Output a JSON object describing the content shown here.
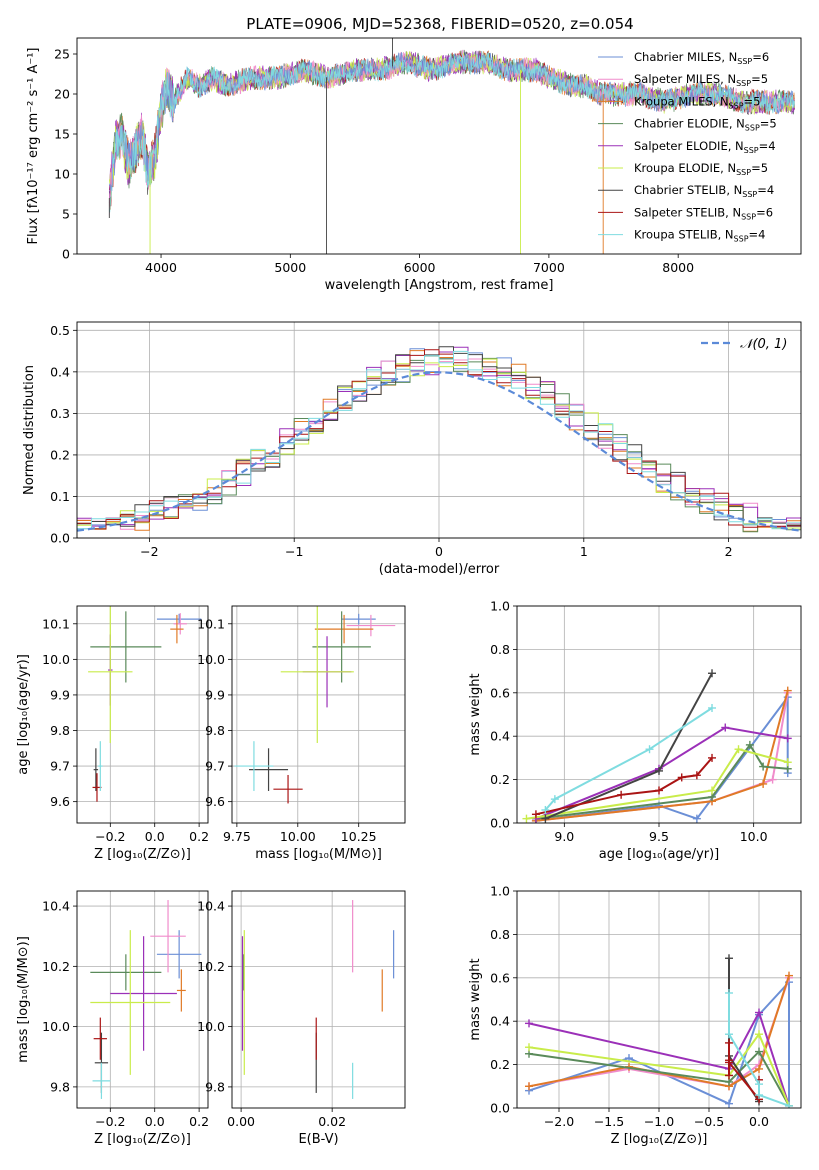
{
  "title": "PLATE=0906, MJD=52368, FIBERID=0520, z=0.054",
  "colors": {
    "Chabrier MILES": "#6b8fd6",
    "Salpeter MILES": "#f08ccb",
    "Kroupa MILES": "#e07a26",
    "Chabrier ELODIE": "#5a8a5a",
    "Salpeter ELODIE": "#9b30b8",
    "Kroupa ELODIE": "#c9ec4a",
    "Chabrier STELIB": "#444444",
    "Salpeter STELIB": "#aa1414",
    "Kroupa STELIB": "#7fdce0",
    "normal": "#5b8ad8",
    "grid": "#b0b0b0"
  },
  "chart_data": [
    {
      "type": "line",
      "title": "PLATE=0906, MJD=52368, FIBERID=0520, z=0.054",
      "xlabel": "wavelength [Angstrom, rest frame]",
      "ylabel": "Flux [fλ10⁻¹⁷ erg cm⁻² s⁻¹ A⁻¹]",
      "xlim": [
        3350,
        8950
      ],
      "ylim": [
        0,
        27
      ],
      "xticks": [
        4000,
        5000,
        6000,
        7000,
        8000
      ],
      "yticks": [
        0,
        5,
        10,
        15,
        20,
        25
      ],
      "grid": false,
      "legend": "right",
      "legend_entries": [
        {
          "name": "Chabrier MILES, N_SSP=6",
          "label": "Chabrier MILES, N",
          "sub": "SSP",
          "suffix": "=6",
          "color_key": "Chabrier MILES"
        },
        {
          "name": "Salpeter MILES, N_SSP=5",
          "label": "Salpeter MILES, N",
          "sub": "SSP",
          "suffix": "=5",
          "color_key": "Salpeter MILES"
        },
        {
          "name": "Kroupa MILES, N_SSP=5",
          "label": "Kroupa MILES, N",
          "sub": "SSP",
          "suffix": "=5",
          "color_key": "Kroupa MILES"
        },
        {
          "name": "Chabrier ELODIE, N_SSP=5",
          "label": "Chabrier ELODIE, N",
          "sub": "SSP",
          "suffix": "=5",
          "color_key": "Chabrier ELODIE"
        },
        {
          "name": "Salpeter ELODIE, N_SSP=4",
          "label": "Salpeter ELODIE, N",
          "sub": "SSP",
          "suffix": "=4",
          "color_key": "Salpeter ELODIE"
        },
        {
          "name": "Kroupa ELODIE, N_SSP=5",
          "label": "Kroupa ELODIE, N",
          "sub": "SSP",
          "suffix": "=5",
          "color_key": "Kroupa ELODIE"
        },
        {
          "name": "Chabrier STELIB, N_SSP=4",
          "label": "Chabrier STELIB, N",
          "sub": "SSP",
          "suffix": "=4",
          "color_key": "Chabrier STELIB"
        },
        {
          "name": "Salpeter STELIB, N_SSP=6",
          "label": "Salpeter STELIB, N",
          "sub": "SSP",
          "suffix": "=6",
          "color_key": "Salpeter STELIB"
        },
        {
          "name": "Kroupa STELIB, N_SSP=4",
          "label": "Kroupa STELIB, N",
          "sub": "SSP",
          "suffix": "=4",
          "color_key": "Kroupa STELIB"
        }
      ],
      "spectrum_anchor_points": {
        "x": [
          3600,
          3650,
          3700,
          3750,
          3800,
          3850,
          3900,
          3950,
          4000,
          4050,
          4100,
          4200,
          4300,
          4400,
          4500,
          4700,
          4900,
          5100,
          5300,
          5500,
          5700,
          5900,
          6100,
          6300,
          6500,
          6700,
          6900,
          7000,
          7200,
          7300,
          7400,
          7500,
          7700,
          7900,
          8100,
          8300,
          8500,
          8700,
          8900
        ],
        "y": [
          7,
          14,
          15,
          11,
          13,
          15,
          10,
          12,
          18,
          21,
          19,
          22,
          21,
          22,
          21,
          22,
          22,
          23,
          22,
          23,
          23,
          24,
          23,
          24,
          24,
          23,
          23,
          22,
          21,
          21,
          20,
          20,
          20,
          19,
          20,
          20,
          19,
          19,
          19
        ]
      },
      "spike_lines": [
        {
          "x": 3600,
          "y": 4.5,
          "color_key": "Chabrier STELIB"
        },
        {
          "x": 3915,
          "y": 0,
          "color_key": "Kroupa ELODIE"
        },
        {
          "x": 5280,
          "y": 0,
          "color_key": "Chabrier STELIB"
        },
        {
          "x": 5790,
          "y": 27,
          "color_key": "Chabrier STELIB"
        },
        {
          "x": 6780,
          "y": 0,
          "color_key": "Kroupa ELODIE"
        },
        {
          "x": 7420,
          "y": 0,
          "color_key": "Kroupa MILES"
        }
      ]
    },
    {
      "type": "histogram",
      "xlabel": "(data-model)/error",
      "ylabel": "Normed distribution",
      "xlim": [
        -2.5,
        2.5
      ],
      "ylim": [
        0,
        0.52
      ],
      "xticks": [
        -2,
        -1,
        0,
        1,
        2
      ],
      "yticks": [
        0.0,
        0.1,
        0.2,
        0.3,
        0.4,
        0.5
      ],
      "grid": true,
      "legend": "top-right",
      "legend_label": "𝒩(0, 1)",
      "bin_width": 0.1,
      "normal_curve": {
        "mean": 0,
        "sigma": 1
      }
    },
    {
      "type": "scatter",
      "xlabel": "Z [log₁₀(Z/Z⊙)]",
      "ylabel": "age  [log₁₀(age/yr)]",
      "xlim": [
        -0.35,
        0.24
      ],
      "ylim": [
        9.54,
        10.15
      ],
      "xticks": [
        -0.2,
        0.0,
        0.2
      ],
      "yticks": [
        9.6,
        9.7,
        9.8,
        9.9,
        10.0,
        10.1
      ],
      "grid": true,
      "error_bars": [
        {
          "color_key": "Chabrier MILES",
          "x": 0.11,
          "xerr": 0.1,
          "y": 10.113,
          "yerr": 0.015
        },
        {
          "color_key": "Salpeter MILES",
          "x": 0.115,
          "xerr": 0.03,
          "y": 10.1,
          "yerr": 0.03
        },
        {
          "color_key": "Kroupa MILES",
          "x": 0.1,
          "xerr": 0.03,
          "y": 10.085,
          "yerr": 0.04
        },
        {
          "color_key": "Chabrier ELODIE",
          "x": -0.13,
          "xerr": 0.16,
          "y": 10.035,
          "yerr": 0.1
        },
        {
          "color_key": "Salpeter ELODIE",
          "x": -0.2,
          "xerr": 0.01,
          "y": 9.97,
          "yerr": 0.1
        },
        {
          "color_key": "Kroupa ELODIE",
          "x": -0.2,
          "xerr": 0.1,
          "y": 9.965,
          "yerr": 0.2
        },
        {
          "color_key": "Chabrier STELIB",
          "x": -0.265,
          "xerr": 0.01,
          "y": 9.69,
          "yerr": 0.06
        },
        {
          "color_key": "Salpeter STELIB",
          "x": -0.26,
          "xerr": 0.02,
          "y": 9.64,
          "yerr": 0.04
        },
        {
          "color_key": "Kroupa STELIB",
          "x": -0.245,
          "xerr": 0.01,
          "y": 9.7,
          "yerr": 0.07
        }
      ]
    },
    {
      "type": "scatter",
      "xlabel": "mass [log₁₀(M/M⊙)]",
      "xlim": [
        9.73,
        10.44
      ],
      "ylim": [
        9.54,
        10.15
      ],
      "xticks": [
        9.75,
        10.0,
        10.25
      ],
      "yticks": [
        9.6,
        9.7,
        9.8,
        9.9,
        10.0,
        10.1
      ],
      "grid": true,
      "error_bars": [
        {
          "color_key": "Chabrier MILES",
          "x": 10.25,
          "xerr": 0.07,
          "y": 10.113,
          "yerr": 0.015
        },
        {
          "color_key": "Salpeter MILES",
          "x": 10.3,
          "xerr": 0.1,
          "y": 10.095,
          "yerr": 0.03
        },
        {
          "color_key": "Kroupa MILES",
          "x": 10.19,
          "xerr": 0.12,
          "y": 10.085,
          "yerr": 0.04
        },
        {
          "color_key": "Chabrier ELODIE",
          "x": 10.18,
          "xerr": 0.12,
          "y": 10.035,
          "yerr": 0.1
        },
        {
          "color_key": "Salpeter ELODIE",
          "x": 10.12,
          "xerr": 0.1,
          "y": 9.965,
          "yerr": 0.1
        },
        {
          "color_key": "Kroupa ELODIE",
          "x": 10.08,
          "xerr": 0.15,
          "y": 9.965,
          "yerr": 0.2
        },
        {
          "color_key": "Chabrier STELIB",
          "x": 9.88,
          "xerr": 0.08,
          "y": 9.69,
          "yerr": 0.06
        },
        {
          "color_key": "Salpeter STELIB",
          "x": 9.96,
          "xerr": 0.06,
          "y": 9.635,
          "yerr": 0.04
        },
        {
          "color_key": "Kroupa STELIB",
          "x": 9.82,
          "xerr": 0.08,
          "y": 9.7,
          "yerr": 0.07
        }
      ]
    },
    {
      "type": "line",
      "xlabel": "age  [log₁₀(age/yr)]",
      "ylabel": "mass weight",
      "xlim": [
        8.75,
        10.25
      ],
      "ylim": [
        0,
        1
      ],
      "xticks": [
        9.0,
        9.5,
        10.0
      ],
      "yticks": [
        0.0,
        0.2,
        0.4,
        0.6,
        0.8,
        1.0
      ],
      "grid": true,
      "series": [
        {
          "color_key": "Chabrier MILES",
          "x": [
            8.85,
            9.5,
            9.7,
            10.18,
            10.18
          ],
          "y": [
            0.01,
            0.08,
            0.02,
            0.58,
            0.23
          ]
        },
        {
          "color_key": "Salpeter MILES",
          "x": [
            8.85,
            9.78,
            10.1,
            10.18
          ],
          "y": [
            0.01,
            0.1,
            0.2,
            0.6
          ]
        },
        {
          "color_key": "Kroupa MILES",
          "x": [
            8.85,
            9.78,
            10.05,
            10.18
          ],
          "y": [
            0.01,
            0.1,
            0.18,
            0.61
          ]
        },
        {
          "color_key": "Chabrier ELODIE",
          "x": [
            8.85,
            9.78,
            9.98,
            10.05,
            10.18
          ],
          "y": [
            0.02,
            0.12,
            0.36,
            0.26,
            0.25
          ]
        },
        {
          "color_key": "Salpeter ELODIE",
          "x": [
            8.85,
            9.5,
            9.85,
            10.18
          ],
          "y": [
            0.02,
            0.25,
            0.44,
            0.39
          ]
        },
        {
          "color_key": "Kroupa ELODIE",
          "x": [
            8.8,
            9.78,
            9.92,
            10.18
          ],
          "y": [
            0.02,
            0.15,
            0.34,
            0.28
          ]
        },
        {
          "color_key": "Chabrier STELIB",
          "x": [
            8.9,
            9.5,
            9.78
          ],
          "y": [
            0.02,
            0.24,
            0.69
          ]
        },
        {
          "color_key": "Salpeter STELIB",
          "x": [
            8.85,
            9.3,
            9.5,
            9.62,
            9.7,
            9.78
          ],
          "y": [
            0.04,
            0.13,
            0.15,
            0.21,
            0.22,
            0.3
          ]
        },
        {
          "color_key": "Kroupa STELIB",
          "x": [
            8.9,
            8.95,
            9.45,
            9.78
          ],
          "y": [
            0.06,
            0.11,
            0.34,
            0.53
          ]
        }
      ]
    },
    {
      "type": "scatter",
      "xlabel": "Z [log₁₀(Z/Z⊙)]",
      "ylabel": "mass [log₁₀(M/M⊙)]",
      "xlim": [
        -0.35,
        0.24
      ],
      "ylim": [
        9.73,
        10.45
      ],
      "xticks": [
        -0.2,
        0.0,
        0.2
      ],
      "yticks": [
        9.8,
        10.0,
        10.2,
        10.4
      ],
      "grid": true,
      "error_bars": [
        {
          "color_key": "Chabrier MILES",
          "x": 0.11,
          "xerr": 0.1,
          "y": 10.24,
          "yerr": 0.08
        },
        {
          "color_key": "Salpeter MILES",
          "x": 0.06,
          "xerr": 0.08,
          "y": 10.3,
          "yerr": 0.12
        },
        {
          "color_key": "Kroupa MILES",
          "x": 0.12,
          "xerr": 0.02,
          "y": 10.12,
          "yerr": 0.07
        },
        {
          "color_key": "Chabrier ELODIE",
          "x": -0.13,
          "xerr": 0.16,
          "y": 10.18,
          "yerr": 0.06
        },
        {
          "color_key": "Salpeter ELODIE",
          "x": -0.05,
          "xerr": 0.15,
          "y": 10.11,
          "yerr": 0.19
        },
        {
          "color_key": "Kroupa ELODIE",
          "x": -0.11,
          "xerr": 0.18,
          "y": 10.08,
          "yerr": 0.24
        },
        {
          "color_key": "Chabrier STELIB",
          "x": -0.24,
          "xerr": 0.03,
          "y": 9.88,
          "yerr": 0.1
        },
        {
          "color_key": "Salpeter STELIB",
          "x": -0.245,
          "xerr": 0.03,
          "y": 9.96,
          "yerr": 0.07
        },
        {
          "color_key": "Kroupa STELIB",
          "x": -0.24,
          "xerr": 0.04,
          "y": 9.82,
          "yerr": 0.06
        }
      ]
    },
    {
      "type": "scatter",
      "xlabel": "E(B-V)",
      "xlim": [
        -0.002,
        0.036
      ],
      "ylim": [
        9.73,
        10.45
      ],
      "xticks": [
        0.0,
        0.02
      ],
      "yticks": [
        9.8,
        10.0,
        10.2,
        10.4
      ],
      "grid": true,
      "error_bars": [
        {
          "color_key": "Chabrier MILES",
          "x": 0.0335,
          "y": 10.24,
          "yerr": 0.08
        },
        {
          "color_key": "Salpeter MILES",
          "x": 0.0245,
          "y": 10.3,
          "yerr": 0.12
        },
        {
          "color_key": "Kroupa MILES",
          "x": 0.031,
          "y": 10.12,
          "yerr": 0.07
        },
        {
          "color_key": "Chabrier ELODIE",
          "x": 0.0005,
          "y": 10.18,
          "yerr": 0.06
        },
        {
          "color_key": "Salpeter ELODIE",
          "x": 0.0003,
          "y": 10.11,
          "yerr": 0.19
        },
        {
          "color_key": "Kroupa ELODIE",
          "x": 0.0007,
          "y": 10.08,
          "yerr": 0.24
        },
        {
          "color_key": "Chabrier STELIB",
          "x": 0.0165,
          "y": 9.88,
          "yerr": 0.1
        },
        {
          "color_key": "Salpeter STELIB",
          "x": 0.0165,
          "y": 9.96,
          "yerr": 0.07
        },
        {
          "color_key": "Kroupa STELIB",
          "x": 0.0245,
          "y": 9.82,
          "yerr": 0.06
        }
      ]
    },
    {
      "type": "line",
      "xlabel": "Z [log₁₀(Z/Z⊙)]",
      "ylabel": "mass weight",
      "xlim": [
        -2.42,
        0.42
      ],
      "ylim": [
        0,
        1
      ],
      "xticks": [
        -2.0,
        -1.5,
        -1.0,
        -0.5,
        0.0
      ],
      "yticks": [
        0.0,
        0.2,
        0.4,
        0.6,
        0.8,
        1.0
      ],
      "grid": true,
      "series": [
        {
          "color_key": "Chabrier MILES",
          "x": [
            -2.3,
            -1.3,
            -0.3,
            0.0,
            0.3,
            0.3
          ],
          "y": [
            0.08,
            0.23,
            0.02,
            0.43,
            0.58,
            0.01
          ]
        },
        {
          "color_key": "Salpeter MILES",
          "x": [
            -2.3,
            -1.3,
            -0.3,
            0.0,
            0.3
          ],
          "y": [
            0.1,
            0.18,
            0.1,
            0.2,
            0.6
          ]
        },
        {
          "color_key": "Kroupa MILES",
          "x": [
            -2.3,
            -1.3,
            -0.3,
            0.0,
            0.3
          ],
          "y": [
            0.1,
            0.19,
            0.1,
            0.18,
            0.61
          ]
        },
        {
          "color_key": "Chabrier ELODIE",
          "x": [
            -2.3,
            -0.3,
            0.0,
            0.3
          ],
          "y": [
            0.25,
            0.12,
            0.26,
            0.01
          ]
        },
        {
          "color_key": "Salpeter ELODIE",
          "x": [
            -2.3,
            -0.3,
            0.0,
            0.3
          ],
          "y": [
            0.39,
            0.18,
            0.44,
            0.01
          ]
        },
        {
          "color_key": "Kroupa ELODIE",
          "x": [
            -2.3,
            -0.3,
            0.0,
            0.3
          ],
          "y": [
            0.28,
            0.15,
            0.34,
            0.01
          ]
        },
        {
          "color_key": "Chabrier STELIB",
          "x": [
            -0.3,
            -0.3,
            0.0
          ],
          "y": [
            0.69,
            0.24,
            0.03
          ]
        },
        {
          "color_key": "Salpeter STELIB",
          "x": [
            -0.3,
            -0.3,
            -0.3,
            -0.3,
            0.0,
            0.0
          ],
          "y": [
            0.3,
            0.22,
            0.15,
            0.21,
            0.04,
            0.13
          ]
        },
        {
          "color_key": "Kroupa STELIB",
          "x": [
            -0.3,
            -0.3,
            0.0,
            0.0,
            0.3
          ],
          "y": [
            0.53,
            0.34,
            0.11,
            0.06,
            0.01
          ]
        }
      ]
    }
  ]
}
